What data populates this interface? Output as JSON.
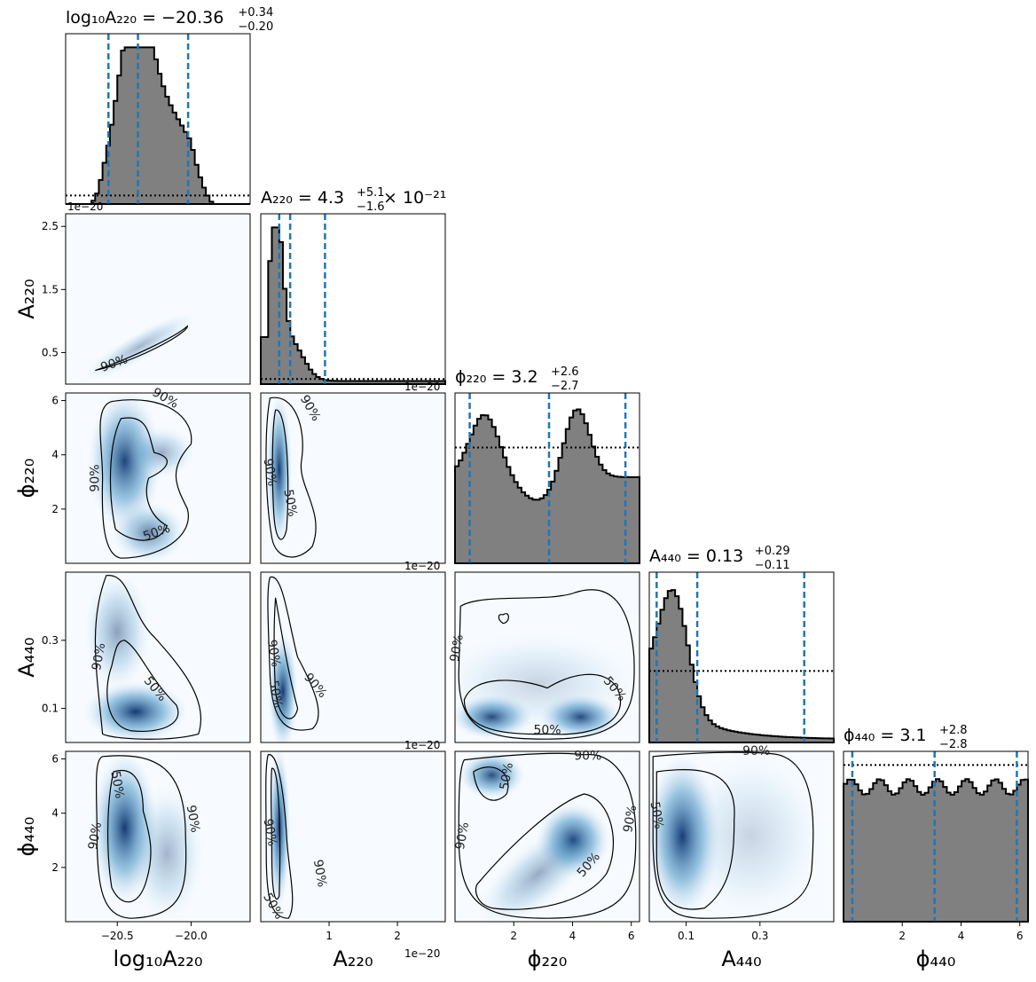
{
  "chart_data": {
    "type": "corner",
    "description_labels": {
      "x_labels": [
        "log₁₀A₂₂₀",
        "A₂₂₀",
        "ϕ₂₂₀",
        "A₄₄₀",
        "ϕ₄₄₀"
      ],
      "y_labels": [
        "A₂₂₀",
        "ϕ₂₂₀",
        "A₄₄₀",
        "ϕ₄₄₀"
      ]
    },
    "titles": [
      {
        "lhs": "log₁₀A₂₂₀ = −20.36",
        "sup": "+0.34",
        "sub": "−0.20",
        "rhs": ""
      },
      {
        "lhs": "A₂₂₀ = 4.3",
        "sup": "+5.1",
        "sub": "−1.6",
        "rhs": " × 10⁻²¹"
      },
      {
        "lhs": "ϕ₂₂₀ = 3.2",
        "sup": "+2.6",
        "sub": "−2.7",
        "rhs": ""
      },
      {
        "lhs": "A₄₄₀ = 0.13",
        "sup": "+0.29",
        "sub": "−0.11",
        "rhs": ""
      },
      {
        "lhs": "ϕ₄₄₀ = 3.1",
        "sup": "+2.8",
        "sub": "−2.8",
        "rhs": ""
      }
    ],
    "params": [
      {
        "name": "log10_A220",
        "range": [
          -20.85,
          -19.6
        ],
        "ticks": [
          -20.5,
          -20.0
        ],
        "tick_labels": [
          "−20.5",
          "−20.0"
        ],
        "offset": "",
        "median": -20.36,
        "q16": -20.56,
        "q84": -20.02
      },
      {
        "name": "A220",
        "range": [
          0.0,
          2.7
        ],
        "ticks": [
          1,
          2
        ],
        "tick_labels": [
          "1",
          "2"
        ],
        "y_ticks": [
          0.5,
          1.5,
          2.5
        ],
        "y_tick_labels": [
          "0.5",
          "1.5",
          "2.5"
        ],
        "offset": "1e−20",
        "median": 0.43,
        "q16": 0.27,
        "q84": 0.94
      },
      {
        "name": "phi220",
        "range": [
          0.0,
          6.28
        ],
        "ticks": [
          2,
          4,
          6
        ],
        "tick_labels": [
          "2",
          "4",
          "6"
        ],
        "offset": "",
        "median": 3.2,
        "q16": 0.5,
        "q84": 5.8
      },
      {
        "name": "A440",
        "range": [
          0.0,
          0.5
        ],
        "ticks": [
          0.1,
          0.3
        ],
        "tick_labels": [
          "0.1",
          "0.3"
        ],
        "offset": "",
        "median": 0.13,
        "q16": 0.02,
        "q84": 0.42
      },
      {
        "name": "phi440",
        "range": [
          0.0,
          6.28
        ],
        "ticks": [
          2,
          4,
          6
        ],
        "tick_labels": [
          "2",
          "4",
          "6"
        ],
        "offset": "",
        "median": 3.1,
        "q16": 0.3,
        "q84": 5.9
      }
    ],
    "contour_labels": [
      "50%",
      "90%"
    ],
    "colors": {
      "hist_fill": "#808080",
      "hist_edge": "#000000",
      "quantile_line": "#1f77b4",
      "density_dark": "#08306b",
      "density_light": "#f7fbff"
    }
  }
}
